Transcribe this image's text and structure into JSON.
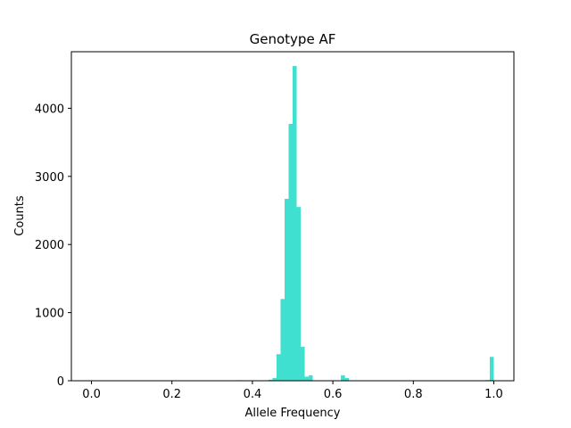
{
  "chart_data": {
    "type": "bar",
    "title": "Genotype AF",
    "xlabel": "Allele Frequency",
    "ylabel": "Counts",
    "xlim": [
      -0.05,
      1.05
    ],
    "ylim": [
      0,
      4830
    ],
    "bin_width": 0.01,
    "bar_color": "#40e0d0",
    "grid": false,
    "xticks": [
      0.0,
      0.2,
      0.4,
      0.6,
      0.8,
      1.0
    ],
    "xtick_labels": [
      "0.0",
      "0.2",
      "0.4",
      "0.6",
      "0.8",
      "1.0"
    ],
    "yticks": [
      0,
      1000,
      2000,
      3000,
      4000
    ],
    "ytick_labels": [
      "0",
      "1000",
      "2000",
      "3000",
      "4000"
    ],
    "bins": [
      {
        "x": 0.36,
        "count": 8
      },
      {
        "x": 0.37,
        "count": 6
      },
      {
        "x": 0.44,
        "count": 15
      },
      {
        "x": 0.45,
        "count": 40
      },
      {
        "x": 0.46,
        "count": 390
      },
      {
        "x": 0.47,
        "count": 1200
      },
      {
        "x": 0.48,
        "count": 2670
      },
      {
        "x": 0.49,
        "count": 3770
      },
      {
        "x": 0.5,
        "count": 4620
      },
      {
        "x": 0.51,
        "count": 2550
      },
      {
        "x": 0.52,
        "count": 500
      },
      {
        "x": 0.53,
        "count": 60
      },
      {
        "x": 0.54,
        "count": 80
      },
      {
        "x": 0.62,
        "count": 80
      },
      {
        "x": 0.63,
        "count": 40
      },
      {
        "x": 0.98,
        "count": 10
      },
      {
        "x": 0.99,
        "count": 350
      }
    ]
  }
}
